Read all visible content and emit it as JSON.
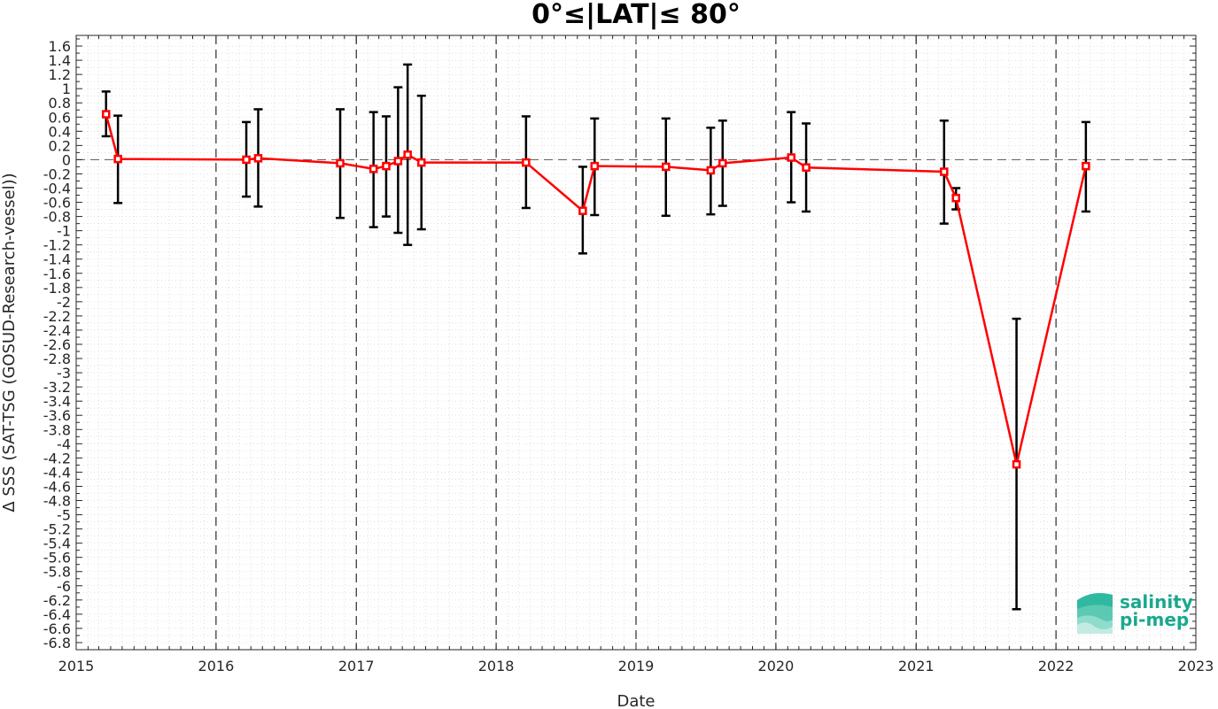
{
  "chart_data": {
    "type": "line",
    "title": "0°≤|LAT|≤ 80°",
    "xlabel": "Date",
    "ylabel": "Δ SSS (SAT-TSG (GOSUD-Research-vessel))",
    "xlim": [
      "2015-01-01",
      "2023-01-01"
    ],
    "ylim": [
      -6.9,
      1.75
    ],
    "x_ticks": [
      "2015",
      "2016",
      "2017",
      "2018",
      "2019",
      "2020",
      "2021",
      "2022",
      "2023"
    ],
    "y_ticks": [
      1.6,
      1.4,
      1.2,
      1,
      0.8,
      0.6,
      0.4,
      0.2,
      0,
      -0.2,
      -0.4,
      -0.6,
      -0.8,
      -1,
      -1.2,
      -1.4,
      -1.6,
      -1.8,
      -2,
      -2.2,
      -2.4,
      -2.6,
      -2.8,
      -3,
      -3.2,
      -3.4,
      -3.6,
      -3.8,
      -4,
      -4.2,
      -4.4,
      -4.6,
      -4.8,
      -5,
      -5.2,
      -5.4,
      -5.6,
      -5.8,
      -6,
      -6.2,
      -6.4,
      -6.6,
      -6.8
    ],
    "y_tick_labels": [
      "1.6",
      "1.4",
      "1.2",
      "1",
      "0.8",
      "0.6",
      "0.4",
      "0.2",
      "0",
      "-0.2",
      "-0.4",
      "-0.6",
      "-0.8",
      "-1",
      "-1.2",
      "-1.4",
      "-1.6",
      "-1.8",
      "-2",
      "-2.2",
      "-2.4",
      "-2.6",
      "-2.8",
      "-3",
      "-3.2",
      "-3.4",
      "-3.6",
      "-3.8",
      "-4",
      "-4.2",
      "-4.4",
      "-4.6",
      "-4.8",
      "-5",
      "-5.2",
      "-5.4",
      "-5.6",
      "-5.8",
      "-6",
      "-6.2",
      "-6.4",
      "-6.6",
      "-6.8"
    ],
    "grid": "minor dotted, yearly dashed verticals",
    "zero_line": "dashed",
    "series": [
      {
        "color": "#ff0000",
        "error_bar_color": "#000000",
        "marker": "square",
        "points": [
          {
            "x": "2015-03-20",
            "y": 0.64,
            "ylow": 0.33,
            "yhigh": 0.96
          },
          {
            "x": "2015-04-20",
            "y": 0.01,
            "ylow": -0.61,
            "yhigh": 0.62
          },
          {
            "x": "2016-03-20",
            "y": 0.0,
            "ylow": -0.52,
            "yhigh": 0.53
          },
          {
            "x": "2016-04-20",
            "y": 0.02,
            "ylow": -0.66,
            "yhigh": 0.71
          },
          {
            "x": "2016-11-20",
            "y": -0.05,
            "ylow": -0.82,
            "yhigh": 0.71
          },
          {
            "x": "2017-02-15",
            "y": -0.13,
            "ylow": -0.95,
            "yhigh": 0.67
          },
          {
            "x": "2017-03-20",
            "y": -0.09,
            "ylow": -0.8,
            "yhigh": 0.61
          },
          {
            "x": "2017-04-20",
            "y": -0.02,
            "ylow": -1.03,
            "yhigh": 1.02
          },
          {
            "x": "2017-05-15",
            "y": 0.07,
            "ylow": -1.2,
            "yhigh": 1.34
          },
          {
            "x": "2017-06-20",
            "y": -0.04,
            "ylow": -0.98,
            "yhigh": 0.9
          },
          {
            "x": "2018-03-20",
            "y": -0.04,
            "ylow": -0.68,
            "yhigh": 0.61
          },
          {
            "x": "2018-08-15",
            "y": -0.72,
            "ylow": -1.32,
            "yhigh": -0.1
          },
          {
            "x": "2018-09-15",
            "y": -0.09,
            "ylow": -0.78,
            "yhigh": 0.58
          },
          {
            "x": "2019-03-20",
            "y": -0.1,
            "ylow": -0.79,
            "yhigh": 0.58
          },
          {
            "x": "2019-07-15",
            "y": -0.15,
            "ylow": -0.77,
            "yhigh": 0.45
          },
          {
            "x": "2019-08-15",
            "y": -0.05,
            "ylow": -0.65,
            "yhigh": 0.55
          },
          {
            "x": "2020-02-10",
            "y": 0.03,
            "ylow": -0.6,
            "yhigh": 0.67
          },
          {
            "x": "2020-03-20",
            "y": -0.11,
            "ylow": -0.73,
            "yhigh": 0.51
          },
          {
            "x": "2021-03-15",
            "y": -0.17,
            "ylow": -0.9,
            "yhigh": 0.55
          },
          {
            "x": "2021-04-15",
            "y": -0.54,
            "ylow": -0.7,
            "yhigh": -0.4
          },
          {
            "x": "2021-09-20",
            "y": -4.29,
            "ylow": -6.33,
            "yhigh": -2.24
          },
          {
            "x": "2022-03-20",
            "y": -0.09,
            "ylow": -0.73,
            "yhigh": 0.53
          }
        ]
      }
    ]
  },
  "logo": {
    "line1": "salinity",
    "line2": "pi-mep"
  }
}
